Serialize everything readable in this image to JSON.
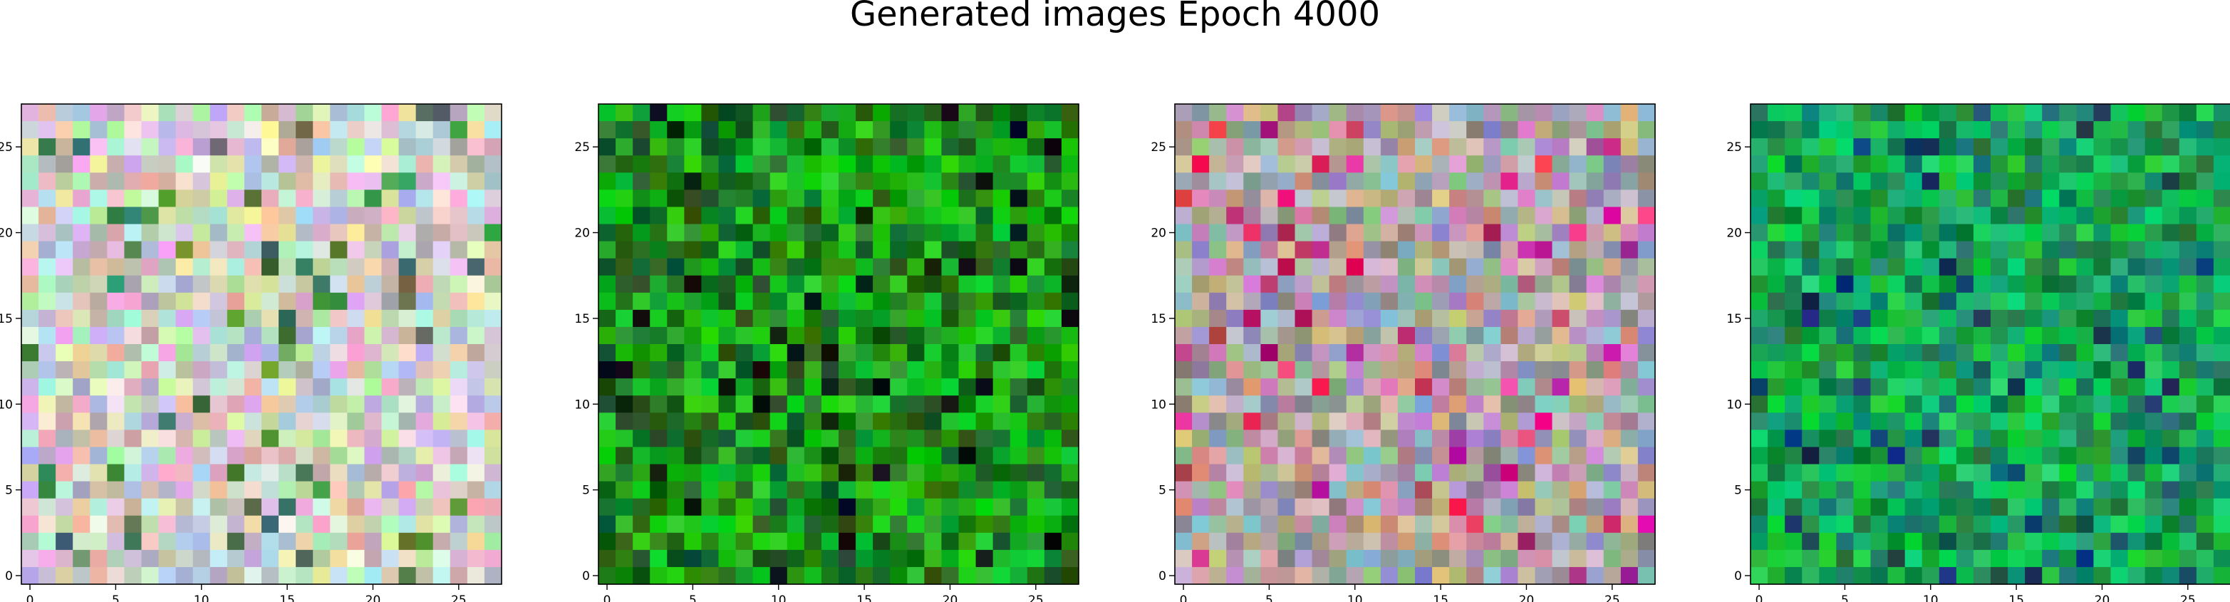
{
  "title": "Generated images Epoch 4000",
  "chart_data": [
    {
      "type": "heatmap",
      "grid_size": [
        28,
        28
      ],
      "x_ticks": [
        0,
        5,
        10,
        15,
        20,
        25
      ],
      "y_ticks": [
        0,
        5,
        10,
        15,
        20,
        25
      ],
      "xlim": [
        -0.5,
        27.5
      ],
      "ylim": [
        27.5,
        -0.5
      ],
      "palette": "pastel"
    },
    {
      "type": "heatmap",
      "grid_size": [
        28,
        28
      ],
      "x_ticks": [
        0,
        5,
        10,
        15,
        20,
        25
      ],
      "y_ticks": [
        0,
        5,
        10,
        15,
        20,
        25
      ],
      "xlim": [
        -0.5,
        27.5
      ],
      "ylim": [
        27.5,
        -0.5
      ],
      "palette": "dark-green"
    },
    {
      "type": "heatmap",
      "grid_size": [
        28,
        28
      ],
      "x_ticks": [
        0,
        5,
        10,
        15,
        20,
        25
      ],
      "y_ticks": [
        0,
        5,
        10,
        15,
        20,
        25
      ],
      "xlim": [
        -0.5,
        27.5
      ],
      "ylim": [
        27.5,
        -0.5
      ],
      "palette": "muted-mixed"
    },
    {
      "type": "heatmap",
      "grid_size": [
        28,
        28
      ],
      "x_ticks": [
        0,
        5,
        10,
        15,
        20,
        25
      ],
      "y_ticks": [
        0,
        5,
        10,
        15,
        20,
        25
      ],
      "xlim": [
        -0.5,
        27.5
      ],
      "ylim": [
        27.5,
        -0.5
      ],
      "palette": "bright-green"
    }
  ]
}
